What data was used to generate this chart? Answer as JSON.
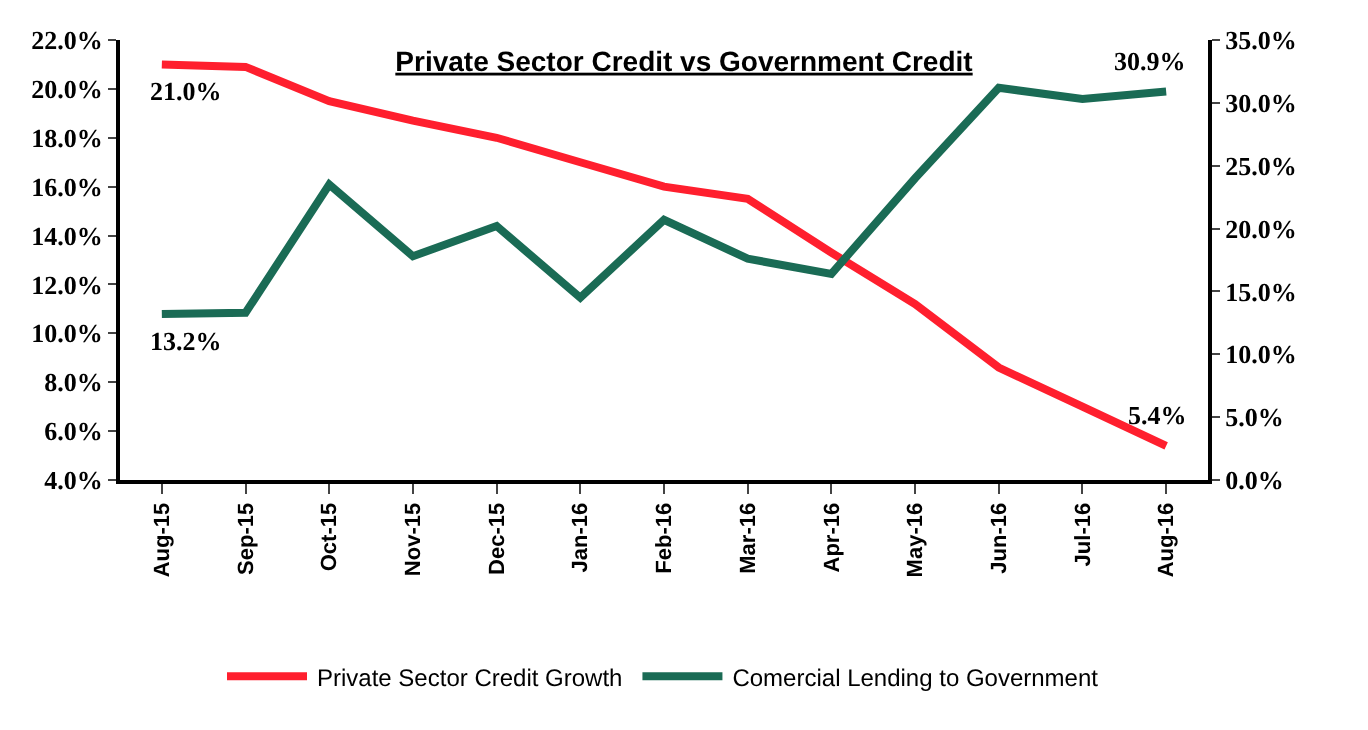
{
  "chart_data": {
    "type": "line",
    "title": "Private Sector Credit vs Government Credit",
    "categories": [
      "Aug-15",
      "Sep-15",
      "Oct-15",
      "Nov-15",
      "Dec-15",
      "Jan-16",
      "Feb-16",
      "Mar-16",
      "Apr-16",
      "May-16",
      "Jun-16",
      "Jul-16",
      "Aug-16"
    ],
    "series": [
      {
        "name": "Private Sector Credit Growth",
        "color": "#ff1f2e",
        "values": [
          21.0,
          20.9,
          19.5,
          18.7,
          18.0,
          17.0,
          16.0,
          15.5,
          13.3,
          11.2,
          8.6,
          7.0,
          5.4
        ],
        "value_labels": [
          "21.0%",
          null,
          null,
          null,
          null,
          null,
          null,
          null,
          null,
          null,
          null,
          null,
          "5.4%"
        ]
      },
      {
        "name": "Comercial Lending to Government",
        "color": "#1a6b55",
        "axis": "y2",
        "values": [
          13.2,
          13.3,
          23.5,
          17.8,
          20.2,
          14.5,
          20.7,
          17.6,
          16.4,
          24.0,
          31.2,
          30.3,
          30.9
        ],
        "value_labels": [
          "13.2%",
          null,
          null,
          null,
          null,
          null,
          null,
          null,
          null,
          null,
          null,
          null,
          "30.9%"
        ]
      }
    ],
    "ylim": [
      4,
      22
    ],
    "yticks": [
      {
        "value": 4,
        "label": "4.0%"
      },
      {
        "value": 6,
        "label": "6.0%"
      },
      {
        "value": 8,
        "label": "8.0%"
      },
      {
        "value": 10,
        "label": "10.0%"
      },
      {
        "value": 12,
        "label": "12.0%"
      },
      {
        "value": 14,
        "label": "14.0%"
      },
      {
        "value": 16,
        "label": "16.0%"
      },
      {
        "value": 18,
        "label": "18.0%"
      },
      {
        "value": 20,
        "label": "20.0%"
      },
      {
        "value": 22,
        "label": "22.0%"
      }
    ],
    "y2lim": [
      0,
      35
    ],
    "y2ticks": [
      {
        "value": 0,
        "label": "0.0%"
      },
      {
        "value": 5,
        "label": "5.0%"
      },
      {
        "value": 10,
        "label": "10.0%"
      },
      {
        "value": 15,
        "label": "15.0%"
      },
      {
        "value": 20,
        "label": "20.0%"
      },
      {
        "value": 25,
        "label": "25.0%"
      },
      {
        "value": 30,
        "label": "30.0%"
      },
      {
        "value": 35,
        "label": "35.0%"
      }
    ],
    "legend": "bottom",
    "marker": "none",
    "line_style": "solid"
  }
}
